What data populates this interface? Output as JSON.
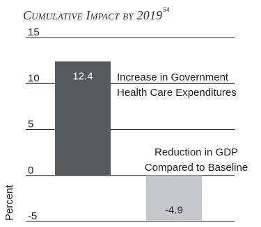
{
  "title": {
    "text": "Cumulative Impact by 2019",
    "footnote": "54"
  },
  "chart_data": {
    "type": "bar",
    "title": "Cumulative Impact by 2019",
    "xlabel": "",
    "ylabel": "Percent",
    "ylim": [
      -5,
      15
    ],
    "yticks": [
      15,
      10,
      5,
      0,
      -5
    ],
    "grid": true,
    "categories": [
      "Increase in Government Health Care Expenditures",
      "Reduction in GDP Compared to Baseline"
    ],
    "values": [
      12.4,
      -4.9
    ],
    "value_labels": [
      "12.4",
      "-4.9"
    ],
    "annotations": [
      [
        "Increase in Government",
        "Health Care Expenditures"
      ],
      [
        "Reduction in GDP",
        "Compared to Baseline"
      ]
    ],
    "colors": {
      "bars": [
        "#58595b",
        "#c7c8ca"
      ],
      "value_label_text": [
        "#ffffff",
        "#231f20"
      ],
      "grid": "#231f20",
      "text": "#231f20"
    }
  }
}
